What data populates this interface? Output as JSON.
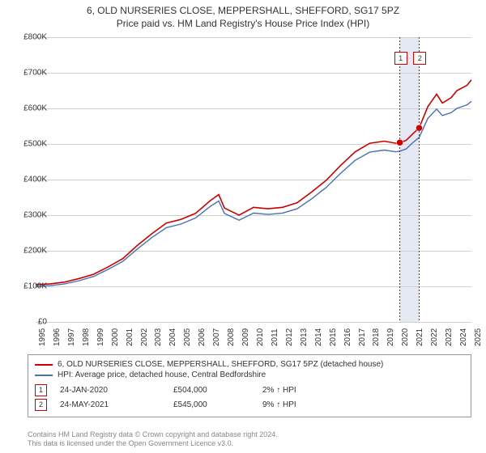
{
  "title": {
    "line1": "6, OLD NURSERIES CLOSE, MEPPERSHALL, SHEFFORD, SG17 5PZ",
    "line2": "Price paid vs. HM Land Registry's House Price Index (HPI)"
  },
  "chart": {
    "type": "line",
    "background_color": "#ffffff",
    "grid_color": "#d0d0d0",
    "highlight_band_color": "#e4e9f4",
    "y_axis": {
      "min": 0,
      "max": 800000,
      "tick_step": 100000,
      "ticks": [
        "£0",
        "£100K",
        "£200K",
        "£300K",
        "£400K",
        "£500K",
        "£600K",
        "£700K",
        "£800K"
      ],
      "fontsize": 10
    },
    "x_axis": {
      "min": 1995,
      "max": 2025,
      "ticks": [
        1995,
        1996,
        1997,
        1998,
        1999,
        2000,
        2001,
        2002,
        2003,
        2004,
        2005,
        2006,
        2007,
        2008,
        2009,
        2010,
        2011,
        2012,
        2013,
        2014,
        2015,
        2016,
        2017,
        2018,
        2019,
        2020,
        2021,
        2022,
        2023,
        2024,
        2025
      ],
      "fontsize": 10
    },
    "series": [
      {
        "name": "price_paid",
        "label": "6, OLD NURSERIES CLOSE, MEPPERSHALL, SHEFFORD, SG17 5PZ (detached house)",
        "color": "#cc0000",
        "line_width": 1.6,
        "data": [
          [
            1995,
            105000
          ],
          [
            1996,
            107000
          ],
          [
            1997,
            112000
          ],
          [
            1998,
            122000
          ],
          [
            1999,
            134000
          ],
          [
            2000,
            155000
          ],
          [
            2001,
            178000
          ],
          [
            2002,
            215000
          ],
          [
            2003,
            248000
          ],
          [
            2004,
            278000
          ],
          [
            2005,
            288000
          ],
          [
            2006,
            305000
          ],
          [
            2007,
            340000
          ],
          [
            2007.6,
            358000
          ],
          [
            2008,
            320000
          ],
          [
            2009,
            300000
          ],
          [
            2010,
            322000
          ],
          [
            2011,
            318000
          ],
          [
            2012,
            322000
          ],
          [
            2013,
            335000
          ],
          [
            2014,
            365000
          ],
          [
            2015,
            398000
          ],
          [
            2016,
            440000
          ],
          [
            2017,
            478000
          ],
          [
            2018,
            502000
          ],
          [
            2019,
            508000
          ],
          [
            2019.8,
            502000
          ],
          [
            2020.07,
            504000
          ],
          [
            2020.5,
            510000
          ],
          [
            2021,
            530000
          ],
          [
            2021.4,
            545000
          ],
          [
            2022,
            605000
          ],
          [
            2022.6,
            640000
          ],
          [
            2023,
            615000
          ],
          [
            2023.6,
            630000
          ],
          [
            2024,
            650000
          ],
          [
            2024.7,
            665000
          ],
          [
            2025,
            680000
          ]
        ]
      },
      {
        "name": "hpi",
        "label": "HPI: Average price, detached house, Central Bedfordshire",
        "color": "#4a6fb3",
        "line_width": 1.4,
        "data": [
          [
            1995,
            100000
          ],
          [
            1996,
            102000
          ],
          [
            1997,
            107000
          ],
          [
            1998,
            116000
          ],
          [
            1999,
            128000
          ],
          [
            2000,
            148000
          ],
          [
            2001,
            170000
          ],
          [
            2002,
            205000
          ],
          [
            2003,
            237000
          ],
          [
            2004,
            265000
          ],
          [
            2005,
            275000
          ],
          [
            2006,
            292000
          ],
          [
            2007,
            324000
          ],
          [
            2007.6,
            340000
          ],
          [
            2008,
            305000
          ],
          [
            2009,
            286000
          ],
          [
            2010,
            306000
          ],
          [
            2011,
            302000
          ],
          [
            2012,
            306000
          ],
          [
            2013,
            318000
          ],
          [
            2014,
            346000
          ],
          [
            2015,
            378000
          ],
          [
            2016,
            418000
          ],
          [
            2017,
            454000
          ],
          [
            2018,
            477000
          ],
          [
            2019,
            483000
          ],
          [
            2019.8,
            478000
          ],
          [
            2020.07,
            480000
          ],
          [
            2020.5,
            486000
          ],
          [
            2021,
            505000
          ],
          [
            2021.4,
            518000
          ],
          [
            2022,
            572000
          ],
          [
            2022.6,
            598000
          ],
          [
            2023,
            580000
          ],
          [
            2023.6,
            588000
          ],
          [
            2024,
            600000
          ],
          [
            2024.7,
            610000
          ],
          [
            2025,
            620000
          ]
        ]
      }
    ],
    "sales": [
      {
        "n": "1",
        "year": 2020.07,
        "value": 504000,
        "color": "#cc0000"
      },
      {
        "n": "2",
        "year": 2021.4,
        "value": 545000,
        "color": "#cc0000"
      }
    ],
    "highlight_band": {
      "from": 2020.07,
      "to": 2021.4
    }
  },
  "legend": {
    "series1": "6, OLD NURSERIES CLOSE, MEPPERSHALL, SHEFFORD, SG17 5PZ (detached house)",
    "series2": "HPI: Average price, detached house, Central Bedfordshire"
  },
  "sale_rows": [
    {
      "n": "1",
      "date": "24-JAN-2020",
      "price": "£504,000",
      "pct": "2% ↑ HPI",
      "border_color": "#cc0000"
    },
    {
      "n": "2",
      "date": "24-MAY-2021",
      "price": "£545,000",
      "pct": "9% ↑ HPI",
      "border_color": "#cc0000"
    }
  ],
  "footnote": {
    "line1": "Contains HM Land Registry data © Crown copyright and database right 2024.",
    "line2": "This data is licensed under the Open Government Licence v3.0."
  }
}
